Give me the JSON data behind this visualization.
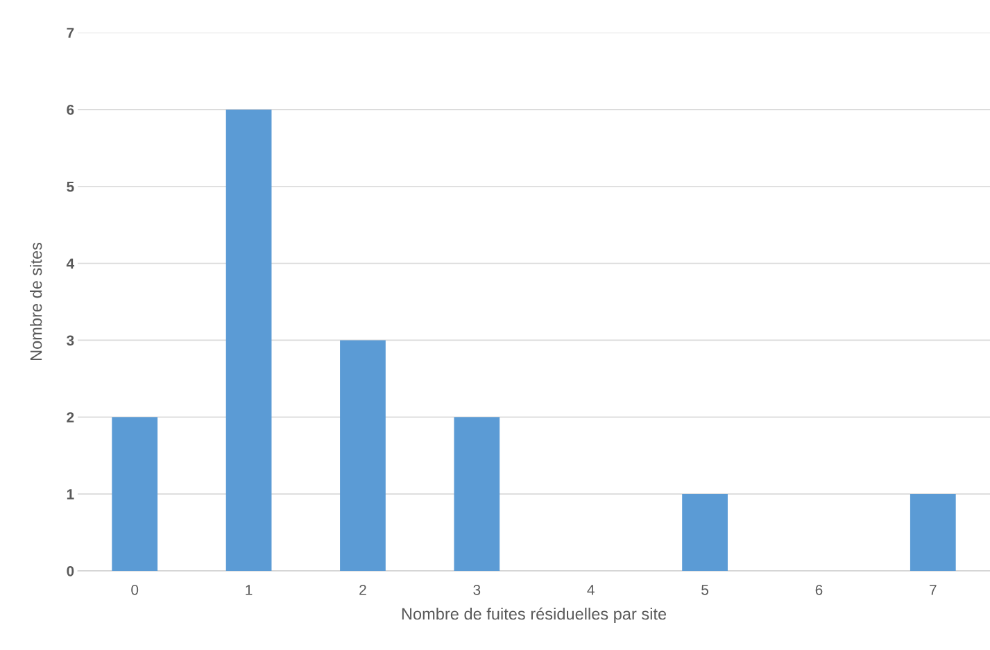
{
  "chart_data": {
    "type": "bar",
    "xlabel": "Nombre de fuites résiduelles par site",
    "ylabel": "Nombre de sites",
    "categories": [
      "0",
      "1",
      "2",
      "3",
      "4",
      "5",
      "6",
      "7"
    ],
    "values": [
      2,
      6,
      3,
      2,
      0,
      1,
      0,
      1
    ],
    "color": "#5b9bd5",
    "ylim": [
      0,
      7
    ],
    "yticks": [
      0,
      1,
      2,
      3,
      4,
      5,
      6,
      7
    ],
    "grid": "y",
    "legend": false
  }
}
